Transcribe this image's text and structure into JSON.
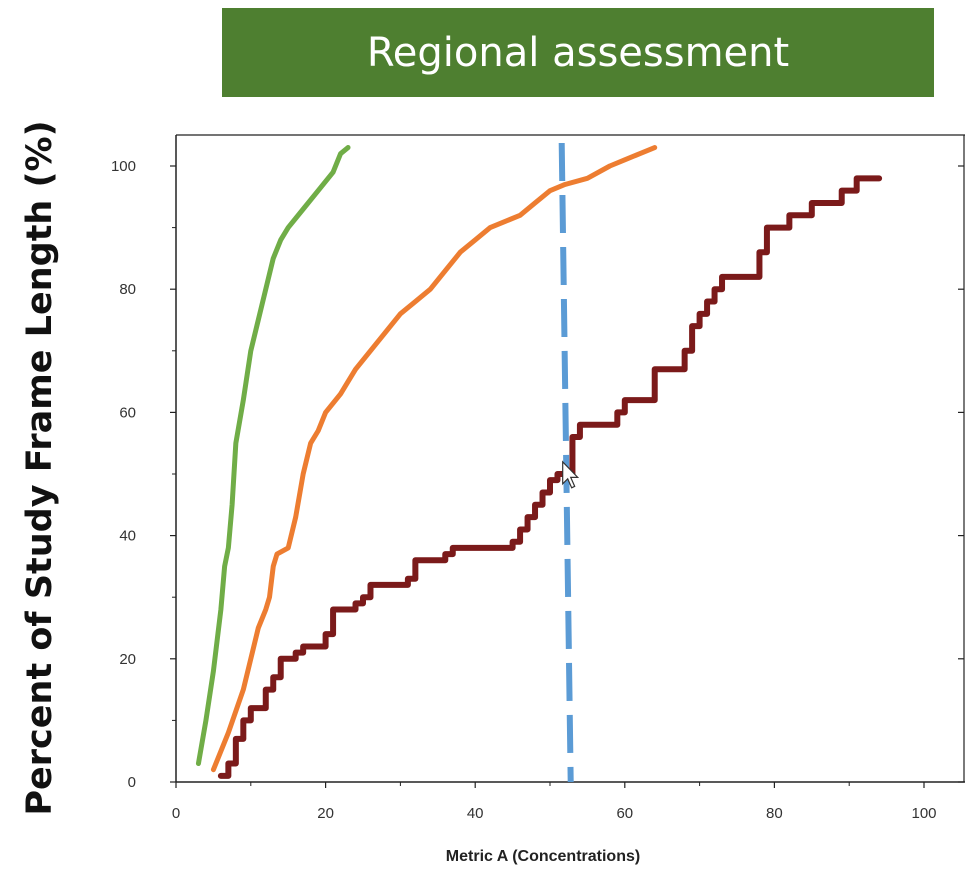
{
  "title": "Regional assessment",
  "colors": {
    "banner": "#4e7f30",
    "dashed_line": "#5b9bd5",
    "axis": "#222222"
  },
  "chart_data": {
    "type": "line",
    "title": "Regional assessment",
    "xlabel": "Metric A (Concentrations)",
    "ylabel": "Percent of Study Frame Length (%)",
    "xlim": [
      0,
      100
    ],
    "ylim": [
      0,
      100
    ],
    "x_ticks": [
      0,
      20,
      40,
      60,
      80,
      100
    ],
    "y_ticks": [
      0,
      20,
      40,
      60,
      80,
      100
    ],
    "grid": false,
    "vertical_marker": {
      "x": 52.5,
      "style": "dashed",
      "color": "#5b9bd5"
    },
    "series": [
      {
        "color": "#70ad47",
        "step": false,
        "points": [
          [
            3,
            3
          ],
          [
            4,
            10
          ],
          [
            5,
            18
          ],
          [
            6,
            28
          ],
          [
            6.5,
            35
          ],
          [
            7,
            38
          ],
          [
            7.5,
            45
          ],
          [
            8,
            55
          ],
          [
            9,
            62
          ],
          [
            10,
            70
          ],
          [
            11,
            75
          ],
          [
            12,
            80
          ],
          [
            13,
            85
          ],
          [
            14,
            88
          ],
          [
            15,
            90
          ],
          [
            17,
            93
          ],
          [
            19,
            96
          ],
          [
            21,
            99
          ],
          [
            22,
            102
          ],
          [
            23,
            103
          ]
        ]
      },
      {
        "color": "#ed7d31",
        "step": false,
        "points": [
          [
            5,
            2
          ],
          [
            7,
            8
          ],
          [
            9,
            15
          ],
          [
            10,
            20
          ],
          [
            11,
            25
          ],
          [
            12,
            28
          ],
          [
            12.5,
            30
          ],
          [
            13,
            35
          ],
          [
            13.5,
            37
          ],
          [
            15,
            38
          ],
          [
            16,
            43
          ],
          [
            17,
            50
          ],
          [
            18,
            55
          ],
          [
            19,
            57
          ],
          [
            20,
            60
          ],
          [
            22,
            63
          ],
          [
            24,
            67
          ],
          [
            26,
            70
          ],
          [
            28,
            73
          ],
          [
            30,
            76
          ],
          [
            32,
            78
          ],
          [
            34,
            80
          ],
          [
            36,
            83
          ],
          [
            38,
            86
          ],
          [
            40,
            88
          ],
          [
            42,
            90
          ],
          [
            44,
            91
          ],
          [
            46,
            92
          ],
          [
            48,
            94
          ],
          [
            50,
            96
          ],
          [
            52,
            97
          ],
          [
            55,
            98
          ],
          [
            58,
            100
          ],
          [
            60,
            101
          ],
          [
            62,
            102
          ],
          [
            64,
            103
          ]
        ]
      },
      {
        "color": "#7b1a1a",
        "step": true,
        "points": [
          [
            6,
            1
          ],
          [
            7,
            3
          ],
          [
            8,
            7
          ],
          [
            9,
            10
          ],
          [
            10,
            12
          ],
          [
            12,
            15
          ],
          [
            13,
            17
          ],
          [
            14,
            20
          ],
          [
            16,
            21
          ],
          [
            17,
            22
          ],
          [
            20,
            24
          ],
          [
            21,
            28
          ],
          [
            24,
            29
          ],
          [
            25,
            30
          ],
          [
            26,
            32
          ],
          [
            31,
            33
          ],
          [
            32,
            36
          ],
          [
            36,
            37
          ],
          [
            37,
            38
          ],
          [
            45,
            39
          ],
          [
            46,
            41
          ],
          [
            47,
            43
          ],
          [
            48,
            45
          ],
          [
            49,
            47
          ],
          [
            50,
            49
          ],
          [
            51,
            50
          ],
          [
            52,
            50
          ],
          [
            53,
            56
          ],
          [
            54,
            58
          ],
          [
            55,
            58
          ],
          [
            59,
            60
          ],
          [
            60,
            62
          ],
          [
            63,
            62
          ],
          [
            64,
            67
          ],
          [
            67,
            67
          ],
          [
            68,
            70
          ],
          [
            69,
            74
          ],
          [
            70,
            76
          ],
          [
            71,
            78
          ],
          [
            72,
            80
          ],
          [
            73,
            82
          ],
          [
            77,
            82
          ],
          [
            78,
            86
          ],
          [
            79,
            90
          ],
          [
            81,
            90
          ],
          [
            82,
            92
          ],
          [
            85,
            94
          ],
          [
            88,
            94
          ],
          [
            89,
            96
          ],
          [
            91,
            98
          ],
          [
            94,
            98
          ]
        ]
      }
    ]
  }
}
